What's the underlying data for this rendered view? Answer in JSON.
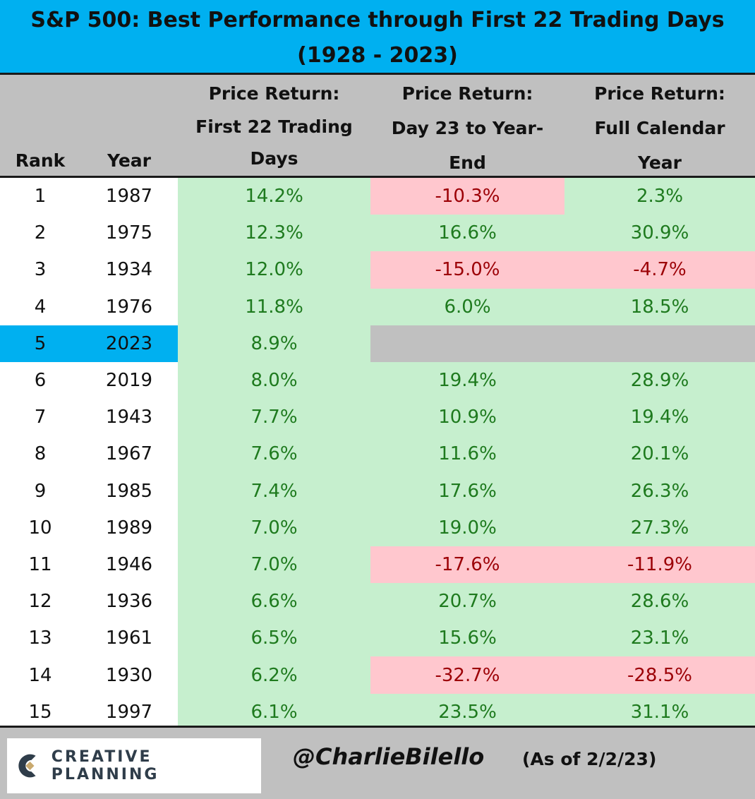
{
  "title": {
    "line1": "S&P 500: Best Performance through First 22 Trading Days",
    "line2": "(1928 - 2023)"
  },
  "columns": {
    "rank": "Rank",
    "year": "Year",
    "first22": [
      "Price Return:",
      "First 22 Trading",
      "Days"
    ],
    "day23": [
      "Price Return:",
      "Day 23 to Year-",
      "End"
    ],
    "full": [
      "Price Return:",
      "Full Calendar",
      "Year"
    ]
  },
  "rows": [
    {
      "rank": "1",
      "year": "1987",
      "first22": "14.2%",
      "day23": "-10.3%",
      "full": "2.3%"
    },
    {
      "rank": "2",
      "year": "1975",
      "first22": "12.3%",
      "day23": "16.6%",
      "full": "30.9%"
    },
    {
      "rank": "3",
      "year": "1934",
      "first22": "12.0%",
      "day23": "-15.0%",
      "full": "-4.7%"
    },
    {
      "rank": "4",
      "year": "1976",
      "first22": "11.8%",
      "day23": "6.0%",
      "full": "18.5%"
    },
    {
      "rank": "5",
      "year": "2023",
      "first22": "8.9%",
      "day23": "",
      "full": ""
    },
    {
      "rank": "6",
      "year": "2019",
      "first22": "8.0%",
      "day23": "19.4%",
      "full": "28.9%"
    },
    {
      "rank": "7",
      "year": "1943",
      "first22": "7.7%",
      "day23": "10.9%",
      "full": "19.4%"
    },
    {
      "rank": "8",
      "year": "1967",
      "first22": "7.6%",
      "day23": "11.6%",
      "full": "20.1%"
    },
    {
      "rank": "9",
      "year": "1985",
      "first22": "7.4%",
      "day23": "17.6%",
      "full": "26.3%"
    },
    {
      "rank": "10",
      "year": "1989",
      "first22": "7.0%",
      "day23": "19.0%",
      "full": "27.3%"
    },
    {
      "rank": "11",
      "year": "1946",
      "first22": "7.0%",
      "day23": "-17.6%",
      "full": "-11.9%"
    },
    {
      "rank": "12",
      "year": "1936",
      "first22": "6.6%",
      "day23": "20.7%",
      "full": "28.6%"
    },
    {
      "rank": "13",
      "year": "1961",
      "first22": "6.5%",
      "day23": "15.6%",
      "full": "23.1%"
    },
    {
      "rank": "14",
      "year": "1930",
      "first22": "6.2%",
      "day23": "-32.7%",
      "full": "-28.5%"
    },
    {
      "rank": "15",
      "year": "1997",
      "first22": "6.1%",
      "day23": "23.5%",
      "full": "31.1%"
    }
  ],
  "highlight_year": "2023",
  "footer": {
    "logo_text": "CREATIVE PLANNING",
    "handle": "@CharlieBilello",
    "as_of": "(As of 2/2/23)"
  },
  "colors": {
    "title_bg": "#00b0f0",
    "header_bg": "#c0c0c0",
    "positive_bg": "#c6efce",
    "positive_text": "#1e7a1e",
    "negative_bg": "#ffc7ce",
    "negative_text": "#9c0006"
  }
}
